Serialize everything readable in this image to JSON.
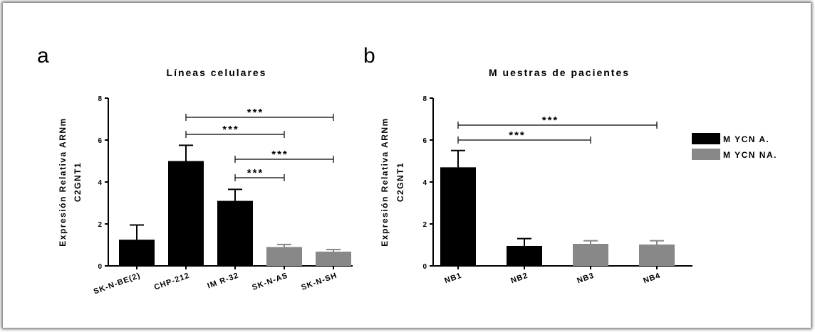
{
  "legend": [
    {
      "label": "M YCN A.",
      "color": "#000000"
    },
    {
      "label": "M YCN NA.",
      "color": "#888888"
    }
  ],
  "chart_data": [
    {
      "panel": "a",
      "type": "bar",
      "title": "Líneas celulares",
      "ylabel_line1": "Expresión Relativa ARNm",
      "ylabel_line2": "C2GNT1",
      "ylim": [
        0,
        8
      ],
      "yticks": [
        "0",
        "2",
        "4",
        "6",
        "8"
      ],
      "categories": [
        "SK-N-BE(2)",
        "CHP-212",
        "IM R-32",
        "SK-N-AS",
        "SK-N-SH"
      ],
      "values": [
        1.25,
        5.0,
        3.1,
        0.9,
        0.68
      ],
      "errors": [
        0.7,
        0.75,
        0.55,
        0.12,
        0.1
      ],
      "groups": [
        "M YCN A.",
        "M YCN A.",
        "M YCN A.",
        "M YCN NA.",
        "M YCN NA."
      ],
      "significance": [
        {
          "from": 1,
          "to": 4,
          "label": "***"
        },
        {
          "from": 1,
          "to": 3,
          "label": "***"
        },
        {
          "from": 2,
          "to": 4,
          "label": "***"
        },
        {
          "from": 2,
          "to": 3,
          "label": "***"
        }
      ]
    },
    {
      "panel": "b",
      "type": "bar",
      "title": "M uestras de pacientes",
      "ylabel_line1": "Expresión Relativa ARNm",
      "ylabel_line2": "C2GNT1",
      "ylim": [
        0,
        8
      ],
      "yticks": [
        "0",
        "2",
        "4",
        "6",
        "8"
      ],
      "categories": [
        "NB1",
        "NB2",
        "NB3",
        "NB4"
      ],
      "values": [
        4.7,
        0.95,
        1.05,
        1.02
      ],
      "errors": [
        0.8,
        0.35,
        0.15,
        0.18
      ],
      "groups": [
        "M YCN A.",
        "M YCN A.",
        "M YCN NA.",
        "M YCN NA."
      ],
      "significance": [
        {
          "from": 0,
          "to": 3,
          "label": "***"
        },
        {
          "from": 0,
          "to": 2,
          "label": "***"
        }
      ]
    }
  ]
}
